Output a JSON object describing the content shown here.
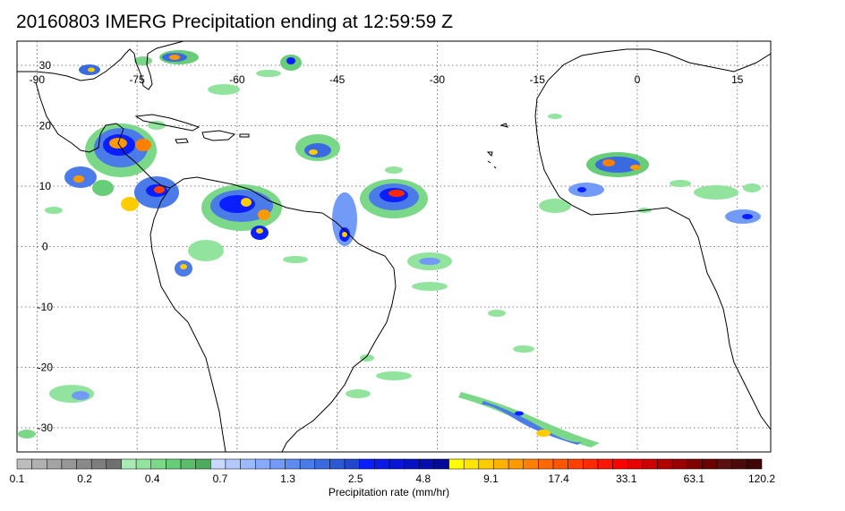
{
  "title": "20160803 IMERG Precipitation ending at 12:59:59 Z",
  "map": {
    "lon_ticks": [
      "-90",
      "-75",
      "-60",
      "-45",
      "-30",
      "-15",
      "0",
      "15"
    ],
    "lat_ticks": [
      "30",
      "20",
      "10",
      "0",
      "-10",
      "-20",
      "-30"
    ],
    "lon_values": [
      -90,
      -75,
      -60,
      -45,
      -30,
      -15,
      0,
      15
    ],
    "lat_values": [
      30,
      20,
      10,
      0,
      -10,
      -20,
      -30
    ],
    "extent": {
      "lon_min": -93,
      "lon_max": 20,
      "lat_min": -34,
      "lat_max": 34
    },
    "grid": "dotted",
    "coastline_color": "#000000"
  },
  "colorbar": {
    "title": "Precipitation rate (mm/hr)",
    "labels": [
      "0.1",
      "0.2",
      "0.4",
      "0.7",
      "1.3",
      "2.5",
      "4.8",
      "9.1",
      "17.4",
      "33.1",
      "63.1",
      "120.2"
    ],
    "colors": [
      "#bdbdbd",
      "#b0b0b0",
      "#a3a3a3",
      "#969696",
      "#8a8a8a",
      "#7d7d7d",
      "#707070",
      "#a8ebb4",
      "#91e39e",
      "#7bd889",
      "#68cd78",
      "#5bbd6a",
      "#4eab5d",
      "#c9d8ff",
      "#b3c8ff",
      "#9dbaff",
      "#87aafc",
      "#729bf7",
      "#5e8bf0",
      "#4b7be8",
      "#3a6ae0",
      "#2b59d6",
      "#1f48cc",
      "#0a1fff",
      "#0a1ae8",
      "#0816d4",
      "#0612c0",
      "#040ead",
      "#030a9a",
      "#ffff00",
      "#ffe600",
      "#ffcc00",
      "#ffb300",
      "#ff9900",
      "#ff8000",
      "#ff6a00",
      "#ff5500",
      "#ff4000",
      "#ff2a00",
      "#ff1500",
      "#ff0000",
      "#e60000",
      "#cc0000",
      "#b30000",
      "#990000",
      "#800000",
      "#6b0000",
      "#5a1010",
      "#4d0a0a",
      "#400505"
    ]
  }
}
